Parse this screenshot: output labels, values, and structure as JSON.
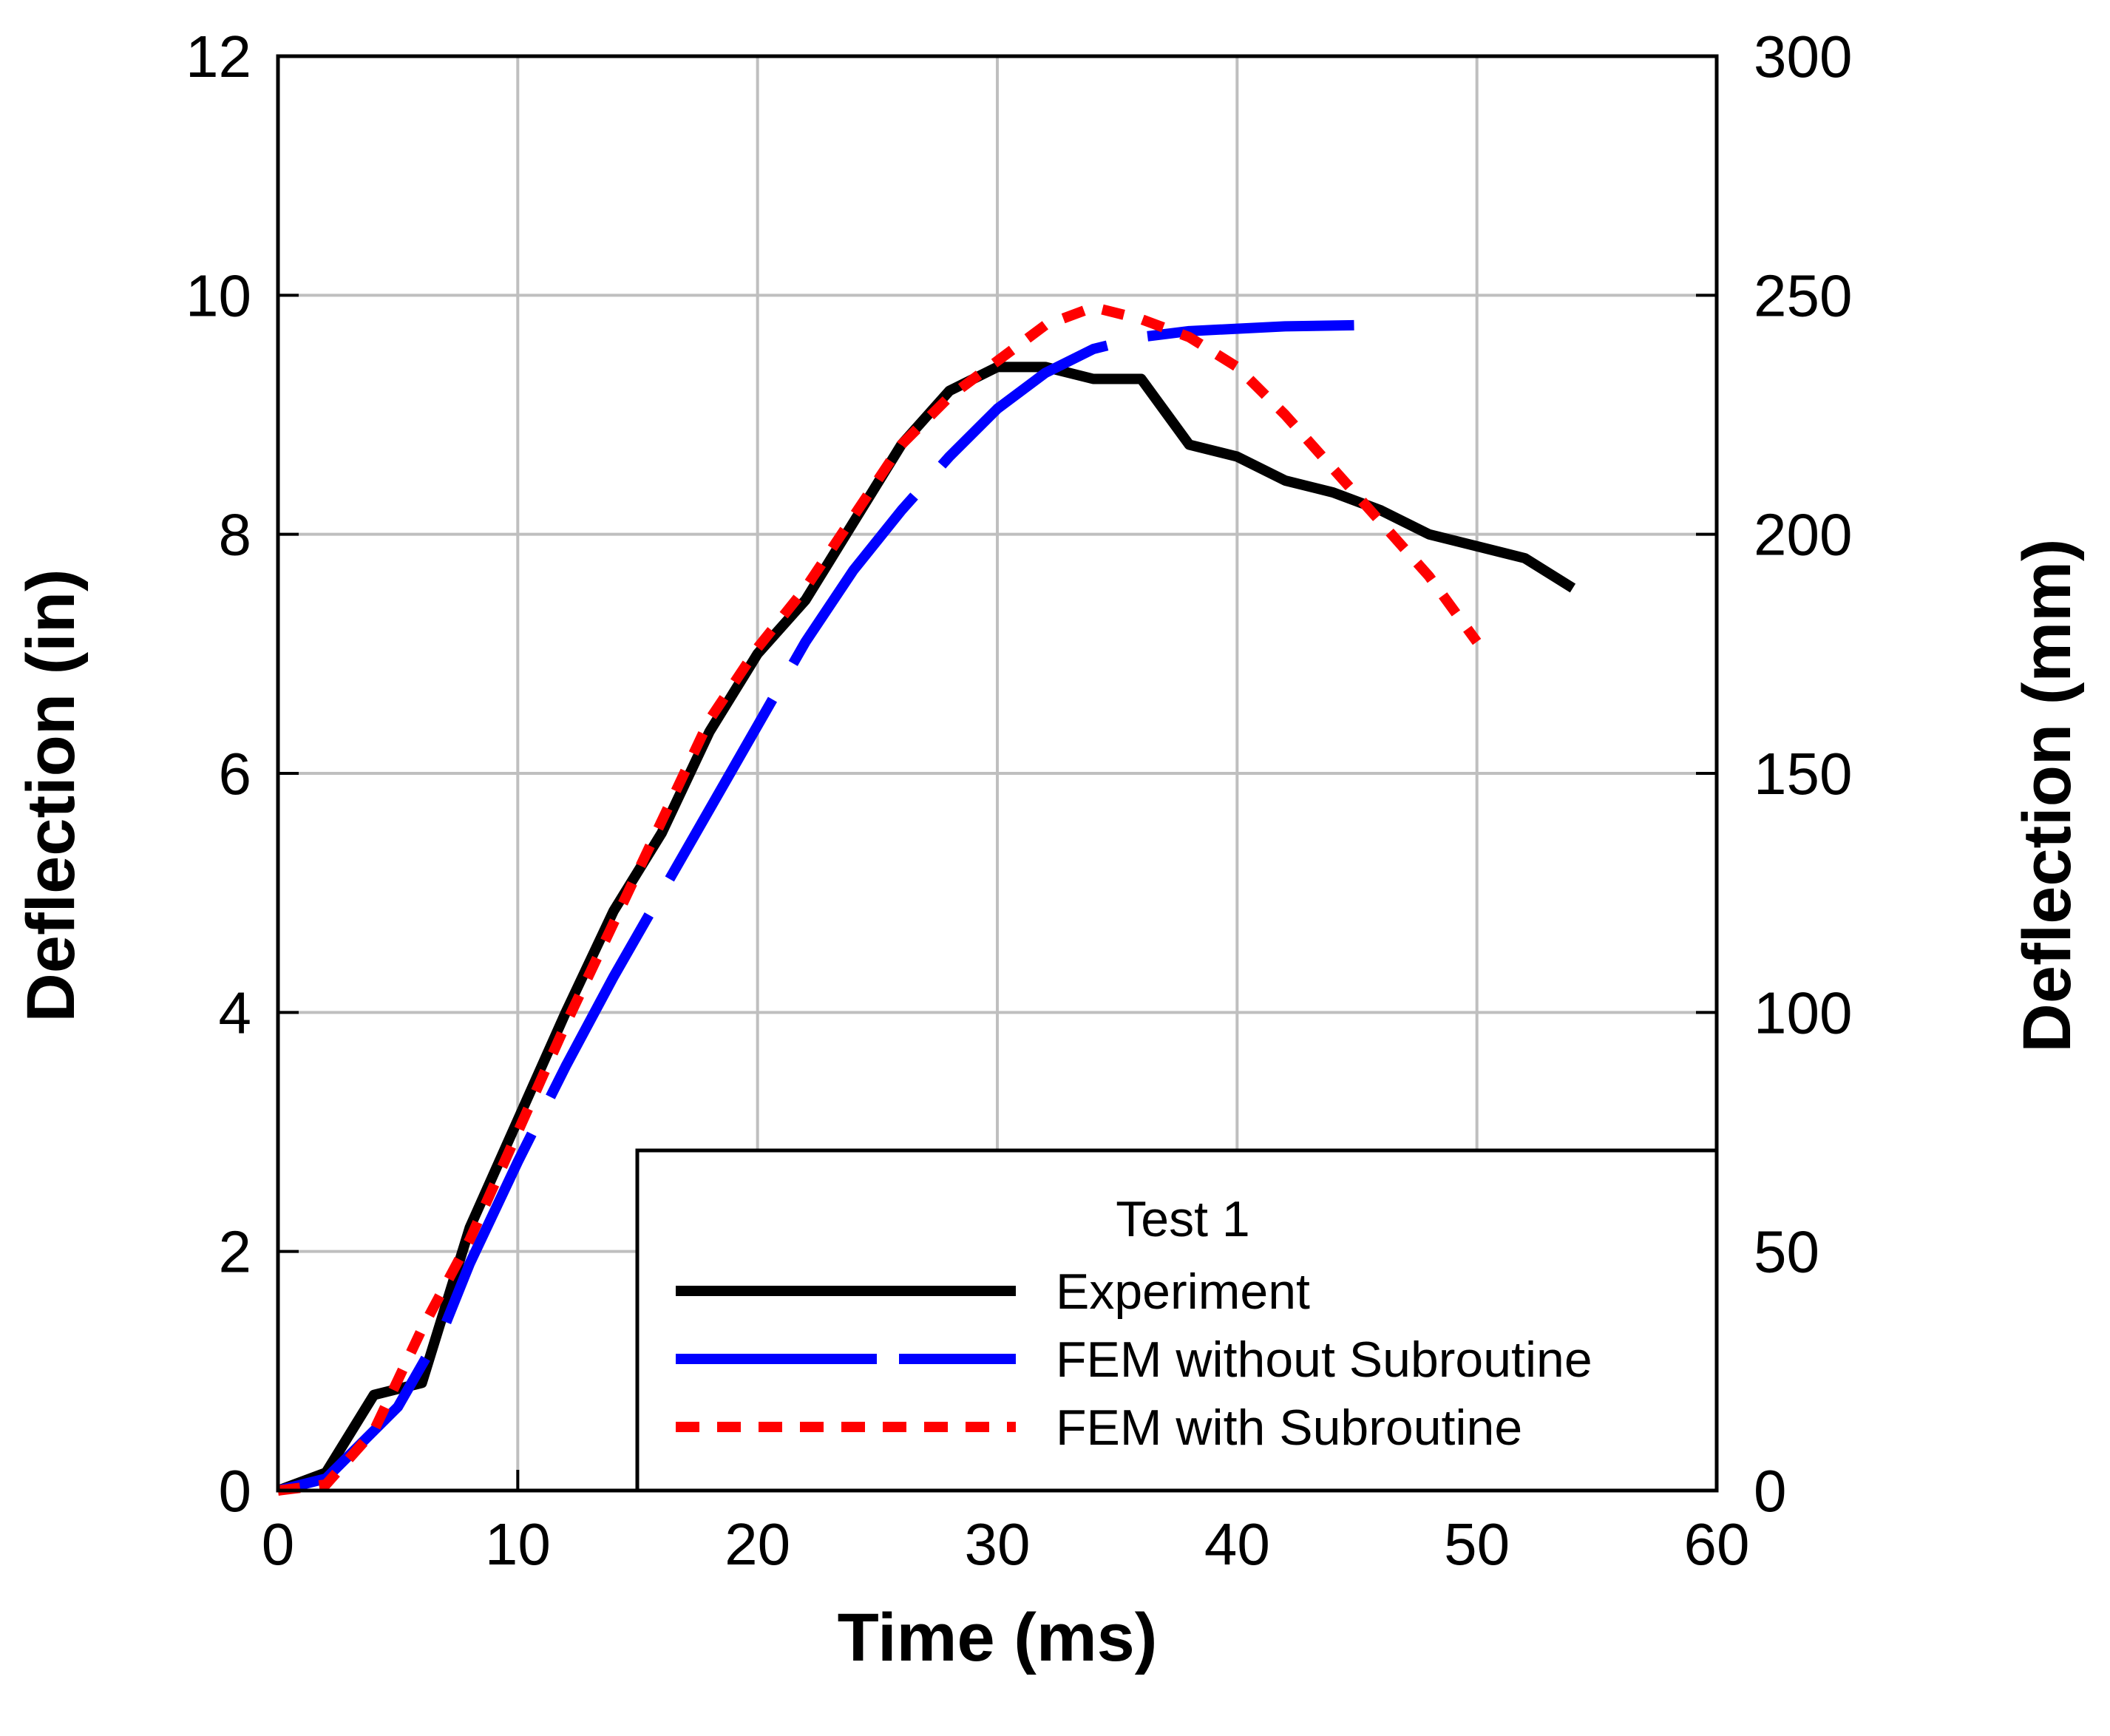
{
  "chart_data": {
    "type": "line",
    "title": "",
    "xlabel": "Time (ms)",
    "ylabel": "Deflection (in)",
    "ylabel_right": "Deflection (mm)",
    "xlim": [
      0,
      60
    ],
    "ylim": [
      0,
      12
    ],
    "ylim_right": [
      0,
      300
    ],
    "x_ticks": [
      0,
      10,
      20,
      30,
      40,
      50,
      60
    ],
    "y_ticks": [
      0,
      2,
      4,
      6,
      8,
      10,
      12
    ],
    "y_ticks_right": [
      0,
      50,
      100,
      150,
      200,
      250,
      300
    ],
    "grid": true,
    "legend": {
      "position": "bottom-right",
      "title": "Test 1",
      "entries": [
        "Experiment",
        "FEM without Subroutine",
        "FEM with Subroutine"
      ]
    },
    "series": [
      {
        "name": "Experiment",
        "color": "#000000",
        "style": "solid",
        "x": [
          0,
          2,
          4,
          6,
          8,
          10,
          12,
          14,
          16,
          18,
          20,
          22,
          24,
          26,
          28,
          30,
          32,
          34,
          36,
          38,
          40,
          42,
          44,
          46,
          48,
          50,
          52,
          54
        ],
        "y": [
          0,
          0.15,
          0.8,
          0.9,
          2.2,
          3.1,
          4.0,
          4.85,
          5.5,
          6.35,
          7.0,
          7.45,
          8.1,
          8.75,
          9.2,
          9.4,
          9.4,
          9.3,
          9.3,
          8.75,
          8.65,
          8.45,
          8.35,
          8.2,
          8.0,
          7.9,
          7.8,
          7.55
        ]
      },
      {
        "name": "FEM without Subroutine",
        "color": "#0000ff",
        "style": "long-dash",
        "x": [
          0,
          2,
          5,
          7,
          8,
          10,
          12,
          14,
          16,
          18,
          20,
          22,
          24,
          26,
          28,
          30,
          32,
          34,
          36,
          38,
          40,
          42,
          45
        ],
        "y": [
          0,
          0.1,
          0.7,
          1.4,
          1.9,
          2.75,
          3.55,
          4.3,
          5.0,
          5.7,
          6.4,
          7.1,
          7.7,
          8.2,
          8.65,
          9.05,
          9.35,
          9.55,
          9.65,
          9.7,
          9.72,
          9.74,
          9.75
        ]
      },
      {
        "name": "FEM with Subroutine",
        "color": "#ff0000",
        "style": "dotted",
        "x": [
          0,
          2,
          4,
          6,
          8,
          10,
          12,
          14,
          16,
          18,
          20,
          22,
          24,
          26,
          28,
          30,
          32,
          34,
          36,
          38,
          40,
          42,
          44,
          46,
          48,
          50
        ],
        "y": [
          0,
          0.05,
          0.5,
          1.35,
          2.1,
          3.0,
          3.9,
          4.75,
          5.6,
          6.45,
          7.05,
          7.55,
          8.15,
          8.75,
          9.15,
          9.45,
          9.75,
          9.9,
          9.8,
          9.65,
          9.4,
          9.0,
          8.55,
          8.1,
          7.65,
          7.1
        ]
      }
    ]
  }
}
